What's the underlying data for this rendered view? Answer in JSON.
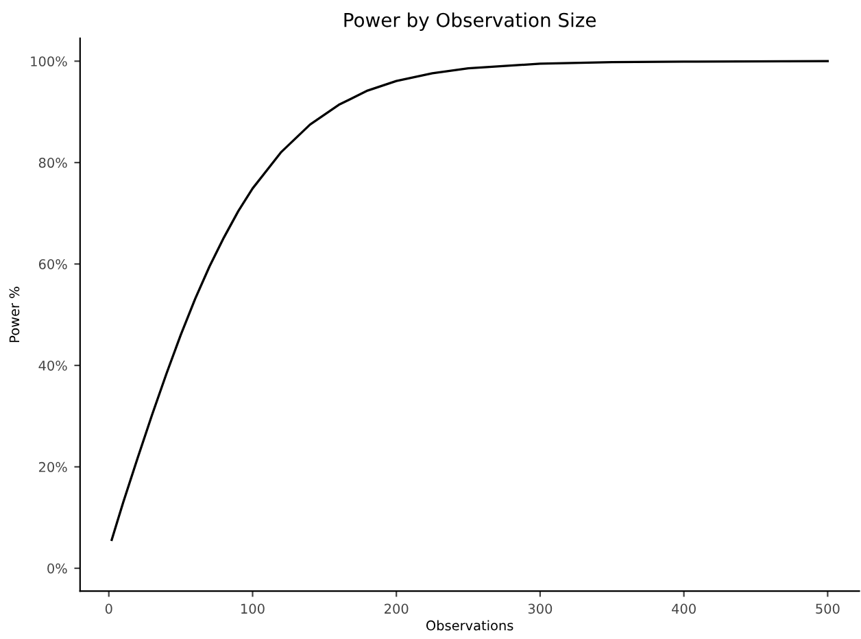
{
  "chart_data": {
    "type": "line",
    "title": "Power by Observation Size",
    "xlabel": "Observations",
    "ylabel": "Power %",
    "series": [
      {
        "color": "#000000",
        "x": [
          2,
          10,
          20,
          30,
          40,
          50,
          60,
          70,
          80,
          90,
          100,
          120,
          140,
          160,
          180,
          200,
          225,
          250,
          300,
          350,
          400,
          500
        ],
        "values": [
          5.6,
          13,
          21.7,
          30.2,
          38.3,
          46,
          53.1,
          59.5,
          65.2,
          70.4,
          74.9,
          82.1,
          87.5,
          91.4,
          94.2,
          96.1,
          97.6,
          98.6,
          99.5,
          99.8,
          99.9,
          100
        ]
      }
    ],
    "xlim": [
      -20,
      522
    ],
    "xticks": [
      0,
      100,
      200,
      300,
      400,
      500
    ],
    "ylim": [
      -4.5,
      104.5
    ],
    "yticks": [
      {
        "value": 0,
        "label": "0%"
      },
      {
        "value": 20,
        "label": "20%"
      },
      {
        "value": 40,
        "label": "40%"
      },
      {
        "value": 60,
        "label": "60%"
      },
      {
        "value": 80,
        "label": "80%"
      },
      {
        "value": 100,
        "label": "100%"
      }
    ],
    "grid": false,
    "legend": false,
    "marker": "none",
    "line_style": "solid"
  }
}
